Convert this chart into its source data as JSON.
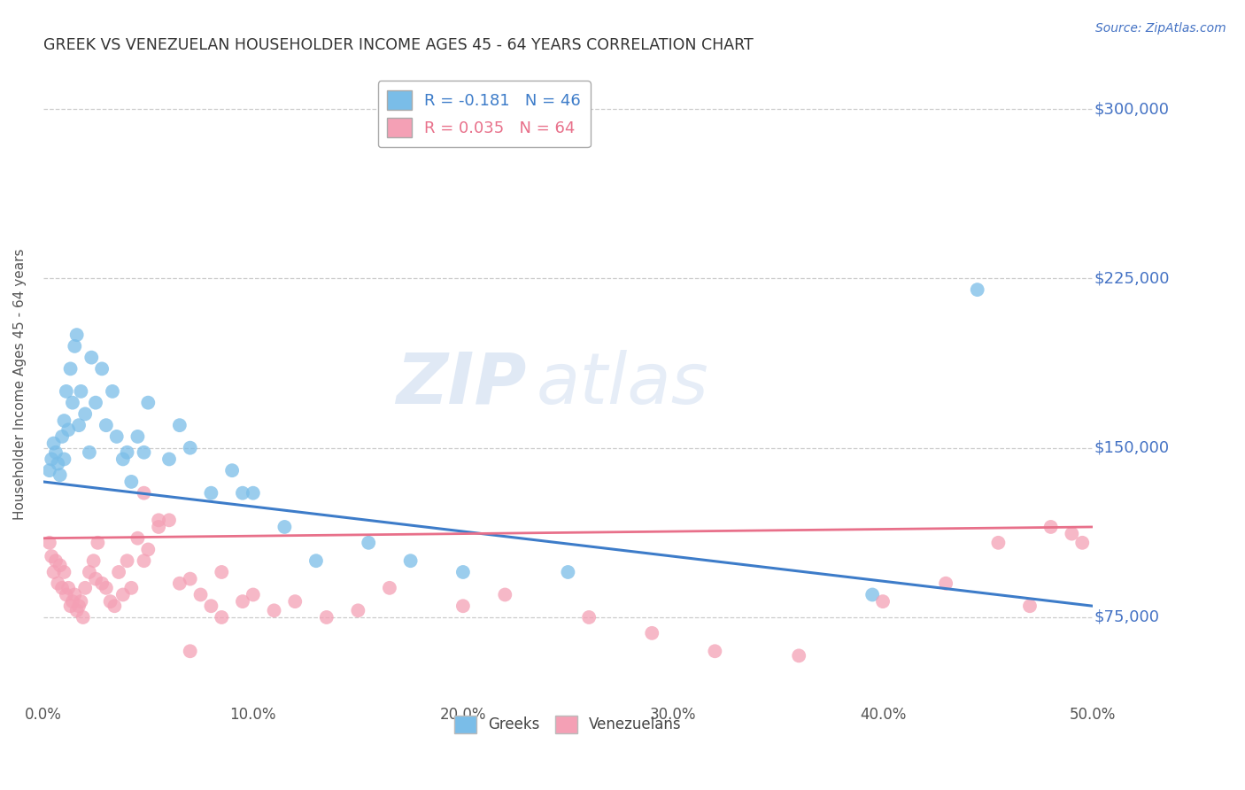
{
  "title": "GREEK VS VENEZUELAN HOUSEHOLDER INCOME AGES 45 - 64 YEARS CORRELATION CHART",
  "source": "Source: ZipAtlas.com",
  "ylabel": "Householder Income Ages 45 - 64 years",
  "xlim": [
    0.0,
    0.5
  ],
  "ylim": [
    37500,
    318750
  ],
  "yticks": [
    75000,
    150000,
    225000,
    300000
  ],
  "xticks": [
    0.0,
    0.1,
    0.2,
    0.3,
    0.4,
    0.5
  ],
  "xtick_labels": [
    "0.0%",
    "10.0%",
    "20.0%",
    "30.0%",
    "40.0%",
    "50.0%"
  ],
  "ytick_labels": [
    "$75,000",
    "$150,000",
    "$225,000",
    "$300,000"
  ],
  "greek_color": "#7abde8",
  "venezuelan_color": "#f4a0b5",
  "greek_line_color": "#3d7cc9",
  "venezuelan_line_color": "#e8708a",
  "R_greek": -0.181,
  "N_greek": 46,
  "R_venezuelan": 0.035,
  "N_venezuelan": 64,
  "watermark_zip": "ZIP",
  "watermark_atlas": "atlas",
  "background_color": "#ffffff",
  "greek_line_y0": 135000,
  "greek_line_y1": 80000,
  "venezuelan_line_y0": 110000,
  "venezuelan_line_y1": 115000,
  "greek_dots_x": [
    0.003,
    0.004,
    0.005,
    0.006,
    0.007,
    0.008,
    0.009,
    0.01,
    0.01,
    0.011,
    0.012,
    0.013,
    0.014,
    0.015,
    0.016,
    0.017,
    0.018,
    0.02,
    0.022,
    0.023,
    0.025,
    0.028,
    0.03,
    0.033,
    0.035,
    0.038,
    0.04,
    0.042,
    0.045,
    0.048,
    0.05,
    0.06,
    0.065,
    0.07,
    0.08,
    0.09,
    0.095,
    0.1,
    0.115,
    0.13,
    0.155,
    0.175,
    0.2,
    0.25,
    0.395,
    0.445
  ],
  "greek_dots_y": [
    140000,
    145000,
    152000,
    148000,
    143000,
    138000,
    155000,
    162000,
    145000,
    175000,
    158000,
    185000,
    170000,
    195000,
    200000,
    160000,
    175000,
    165000,
    148000,
    190000,
    170000,
    185000,
    160000,
    175000,
    155000,
    145000,
    148000,
    135000,
    155000,
    148000,
    170000,
    145000,
    160000,
    150000,
    130000,
    140000,
    130000,
    130000,
    115000,
    100000,
    108000,
    100000,
    95000,
    95000,
    85000,
    220000
  ],
  "venezuelan_dots_x": [
    0.003,
    0.004,
    0.005,
    0.006,
    0.007,
    0.008,
    0.009,
    0.01,
    0.011,
    0.012,
    0.013,
    0.014,
    0.015,
    0.016,
    0.017,
    0.018,
    0.019,
    0.02,
    0.022,
    0.024,
    0.025,
    0.026,
    0.028,
    0.03,
    0.032,
    0.034,
    0.036,
    0.038,
    0.04,
    0.042,
    0.045,
    0.048,
    0.05,
    0.055,
    0.06,
    0.065,
    0.07,
    0.075,
    0.08,
    0.085,
    0.095,
    0.1,
    0.11,
    0.12,
    0.135,
    0.15,
    0.165,
    0.2,
    0.22,
    0.26,
    0.29,
    0.32,
    0.36,
    0.4,
    0.43,
    0.455,
    0.47,
    0.48,
    0.49,
    0.495,
    0.048,
    0.055,
    0.07,
    0.085
  ],
  "venezuelan_dots_y": [
    108000,
    102000,
    95000,
    100000,
    90000,
    98000,
    88000,
    95000,
    85000,
    88000,
    80000,
    82000,
    85000,
    78000,
    80000,
    82000,
    75000,
    88000,
    95000,
    100000,
    92000,
    108000,
    90000,
    88000,
    82000,
    80000,
    95000,
    85000,
    100000,
    88000,
    110000,
    100000,
    105000,
    115000,
    118000,
    90000,
    92000,
    85000,
    80000,
    95000,
    82000,
    85000,
    78000,
    82000,
    75000,
    78000,
    88000,
    80000,
    85000,
    75000,
    68000,
    60000,
    58000,
    82000,
    90000,
    108000,
    80000,
    115000,
    112000,
    108000,
    130000,
    118000,
    60000,
    75000
  ]
}
